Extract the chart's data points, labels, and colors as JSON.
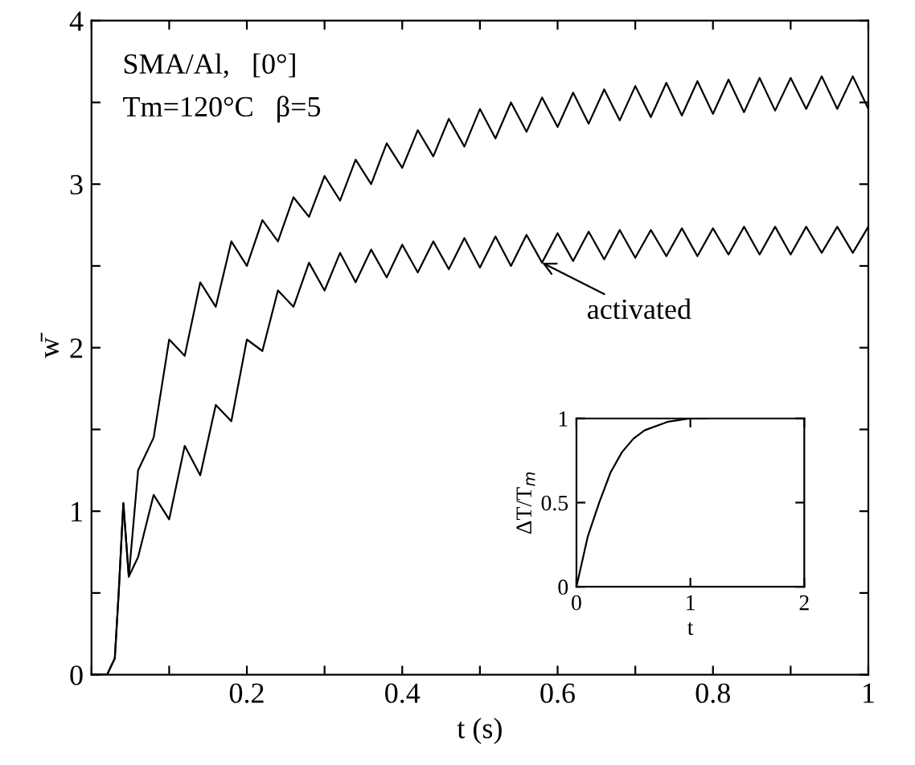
{
  "chart_data": [
    {
      "type": "line",
      "xlabel": "t (s)",
      "ylabel": "w̄",
      "annotations": [
        "SMA/Al,   [0°]",
        "Tm=120°C   β=5",
        {
          "text": "activated",
          "x": 0.58,
          "y": 2.52
        }
      ],
      "series": [
        {
          "color": "#000000",
          "x": [
            0,
            0.02,
            0.03,
            0.035,
            0.041,
            0.048,
            0.06,
            0.08,
            0.1,
            0.12,
            0.14,
            0.16,
            0.18,
            0.2,
            0.22,
            0.24,
            0.26,
            0.28,
            0.3,
            0.32,
            0.34,
            0.36,
            0.38,
            0.4,
            0.42,
            0.44,
            0.46,
            0.48,
            0.5,
            0.52,
            0.54,
            0.56,
            0.58,
            0.6,
            0.62,
            0.64,
            0.66,
            0.68,
            0.7,
            0.72,
            0.74,
            0.76,
            0.78,
            0.8,
            0.82,
            0.84,
            0.86,
            0.88,
            0.9,
            0.92,
            0.94,
            0.96,
            0.98,
            1.0
          ],
          "values": [
            0,
            0,
            0.1,
            0.5,
            1.05,
            0.6,
            1.25,
            1.45,
            2.05,
            1.95,
            2.4,
            2.25,
            2.65,
            2.5,
            2.78,
            2.65,
            2.92,
            2.8,
            3.05,
            2.9,
            3.15,
            3.0,
            3.25,
            3.1,
            3.33,
            3.17,
            3.4,
            3.23,
            3.46,
            3.28,
            3.5,
            3.32,
            3.53,
            3.35,
            3.56,
            3.37,
            3.58,
            3.39,
            3.6,
            3.41,
            3.62,
            3.42,
            3.63,
            3.43,
            3.64,
            3.44,
            3.65,
            3.45,
            3.65,
            3.46,
            3.66,
            3.46,
            3.66,
            3.46
          ]
        },
        {
          "color": "#000000",
          "x": [
            0,
            0.02,
            0.03,
            0.035,
            0.041,
            0.048,
            0.06,
            0.08,
            0.1,
            0.12,
            0.14,
            0.16,
            0.18,
            0.2,
            0.22,
            0.24,
            0.26,
            0.28,
            0.3,
            0.32,
            0.34,
            0.36,
            0.38,
            0.4,
            0.42,
            0.44,
            0.46,
            0.48,
            0.5,
            0.52,
            0.54,
            0.56,
            0.58,
            0.6,
            0.62,
            0.64,
            0.66,
            0.68,
            0.7,
            0.72,
            0.74,
            0.76,
            0.78,
            0.8,
            0.82,
            0.84,
            0.86,
            0.88,
            0.9,
            0.92,
            0.94,
            0.96,
            0.98,
            1.0
          ],
          "values": [
            0,
            0,
            0.1,
            0.5,
            1.05,
            0.6,
            0.72,
            1.1,
            0.95,
            1.4,
            1.22,
            1.65,
            1.55,
            2.05,
            1.98,
            2.35,
            2.25,
            2.52,
            2.35,
            2.58,
            2.4,
            2.6,
            2.43,
            2.63,
            2.46,
            2.65,
            2.48,
            2.67,
            2.49,
            2.68,
            2.5,
            2.69,
            2.52,
            2.7,
            2.53,
            2.71,
            2.54,
            2.72,
            2.55,
            2.72,
            2.56,
            2.73,
            2.56,
            2.73,
            2.57,
            2.74,
            2.57,
            2.74,
            2.57,
            2.74,
            2.58,
            2.74,
            2.58,
            2.74
          ]
        }
      ],
      "xlim": [
        0,
        1
      ],
      "ylim": [
        0,
        4
      ],
      "xticks": [
        {
          "value": 0,
          "label": null
        },
        {
          "value": 0.1,
          "label": null
        },
        0.2,
        {
          "value": 0.3,
          "label": null
        },
        0.4,
        {
          "value": 0.5,
          "label": null
        },
        0.6,
        {
          "value": 0.7,
          "label": null
        },
        0.8,
        {
          "value": 0.9,
          "label": null
        },
        1
      ],
      "yticks": [
        0,
        {
          "value": 0.5,
          "label": null
        },
        1,
        {
          "value": 1.5,
          "label": null
        },
        2,
        {
          "value": 2.5,
          "label": null
        },
        3,
        {
          "value": 3.5,
          "label": null
        },
        4
      ],
      "grid": false,
      "legend": false
    },
    {
      "type": "line",
      "xlabel": "t",
      "ylabel": "ΔT/T$_{m}$",
      "series": [
        {
          "color": "#000000",
          "x": [
            0,
            0.1,
            0.2,
            0.3,
            0.4,
            0.5,
            0.6,
            0.8,
            1.0,
            1.15
          ],
          "values": [
            0,
            0.3,
            0.5,
            0.68,
            0.8,
            0.88,
            0.93,
            0.98,
            1.0,
            1.0
          ]
        }
      ],
      "xlim": [
        0,
        2
      ],
      "ylim": [
        0,
        1
      ],
      "xticks": [
        0,
        1,
        2
      ],
      "yticks": [
        0,
        0.5,
        1
      ],
      "grid": false,
      "legend": false
    }
  ]
}
